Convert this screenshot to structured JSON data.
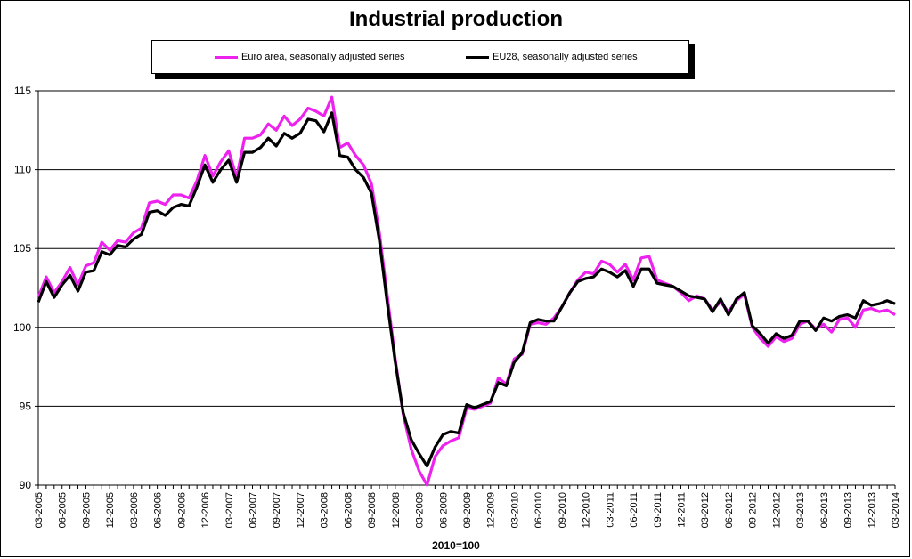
{
  "chart_data": {
    "type": "line",
    "title": "Industrial production",
    "xlabel": "2010=100",
    "ylabel": "",
    "ylim": [
      90,
      115
    ],
    "yticks": [
      90,
      95,
      100,
      105,
      110,
      115
    ],
    "grid": true,
    "legend_position": "top",
    "x": [
      "03-2005",
      "04-2005",
      "05-2005",
      "06-2005",
      "07-2005",
      "08-2005",
      "09-2005",
      "10-2005",
      "11-2005",
      "12-2005",
      "01-2006",
      "02-2006",
      "03-2006",
      "04-2006",
      "05-2006",
      "06-2006",
      "07-2006",
      "08-2006",
      "09-2006",
      "10-2006",
      "11-2006",
      "12-2006",
      "01-2007",
      "02-2007",
      "03-2007",
      "04-2007",
      "05-2007",
      "06-2007",
      "07-2007",
      "08-2007",
      "09-2007",
      "10-2007",
      "11-2007",
      "12-2007",
      "01-2008",
      "02-2008",
      "03-2008",
      "04-2008",
      "05-2008",
      "06-2008",
      "07-2008",
      "08-2008",
      "09-2008",
      "10-2008",
      "11-2008",
      "12-2008",
      "01-2009",
      "02-2009",
      "03-2009",
      "04-2009",
      "05-2009",
      "06-2009",
      "07-2009",
      "08-2009",
      "09-2009",
      "10-2009",
      "11-2009",
      "12-2009",
      "01-2010",
      "02-2010",
      "03-2010",
      "04-2010",
      "05-2010",
      "06-2010",
      "07-2010",
      "08-2010",
      "09-2010",
      "10-2010",
      "11-2010",
      "12-2010",
      "01-2011",
      "02-2011",
      "03-2011",
      "04-2011",
      "05-2011",
      "06-2011",
      "07-2011",
      "08-2011",
      "09-2011",
      "10-2011",
      "11-2011",
      "12-2011",
      "01-2012",
      "02-2012",
      "03-2012",
      "04-2012",
      "05-2012",
      "06-2012",
      "07-2012",
      "08-2012",
      "09-2012",
      "10-2012",
      "11-2012",
      "12-2012",
      "01-2013",
      "02-2013",
      "03-2013",
      "04-2013",
      "05-2013",
      "06-2013",
      "07-2013",
      "08-2013",
      "09-2013",
      "10-2013",
      "11-2013",
      "12-2013",
      "01-2014",
      "02-2014",
      "03-2014"
    ],
    "x_tick_labels": [
      "03-2005",
      "06-2005",
      "09-2005",
      "12-2005",
      "03-2006",
      "06-2006",
      "09-2006",
      "12-2006",
      "03-2007",
      "06-2007",
      "09-2007",
      "12-2007",
      "03-2008",
      "06-2008",
      "09-2008",
      "12-2008",
      "03-2009",
      "06-2009",
      "09-2009",
      "12-2009",
      "03-2010",
      "06-2010",
      "09-2010",
      "12-2010",
      "03-2011",
      "06-2011",
      "09-2011",
      "12-2011",
      "03-2012",
      "06-2012",
      "09-2012",
      "12-2012",
      "03-2013",
      "06-2013",
      "09-2013",
      "12-2013",
      "03-2014"
    ],
    "series": [
      {
        "name": "Euro area, seasonally adjusted series",
        "color": "#ee22ee",
        "values": [
          101.9,
          103.2,
          102.2,
          102.9,
          103.8,
          102.7,
          103.9,
          104.1,
          105.4,
          104.9,
          105.5,
          105.4,
          106.0,
          106.3,
          107.9,
          108.0,
          107.8,
          108.4,
          108.4,
          108.2,
          109.3,
          110.9,
          109.6,
          110.5,
          111.2,
          109.5,
          112.0,
          112.0,
          112.2,
          112.9,
          112.5,
          113.4,
          112.8,
          113.2,
          113.9,
          113.7,
          113.4,
          114.6,
          111.4,
          111.7,
          110.9,
          110.3,
          109.1,
          106.0,
          102.0,
          98.0,
          94.5,
          92.3,
          90.9,
          90.0,
          91.8,
          92.5,
          92.8,
          93.0,
          94.9,
          94.8,
          95.0,
          95.2,
          96.8,
          96.4,
          98.0,
          98.3,
          100.2,
          100.3,
          100.2,
          100.6,
          101.3,
          102.2,
          103.0,
          103.5,
          103.4,
          104.2,
          104.0,
          103.5,
          104.0,
          103.0,
          104.4,
          104.5,
          103.0,
          102.8,
          102.6,
          102.2,
          101.7,
          102.0,
          101.8,
          101.1,
          101.6,
          101.0,
          101.7,
          102.1,
          100.0,
          99.3,
          98.8,
          99.4,
          99.1,
          99.3,
          100.2,
          100.4,
          99.9,
          100.2,
          99.7,
          100.5,
          100.6,
          100.0,
          101.1,
          101.2,
          101.0,
          101.1,
          100.8
        ]
      },
      {
        "name": "EU28, seasonally adjusted series",
        "color": "#000000",
        "values": [
          101.6,
          102.9,
          101.9,
          102.7,
          103.3,
          102.3,
          103.5,
          103.6,
          104.8,
          104.6,
          105.2,
          105.1,
          105.6,
          105.9,
          107.3,
          107.4,
          107.1,
          107.6,
          107.8,
          107.7,
          108.9,
          110.3,
          109.2,
          110.0,
          110.6,
          109.2,
          111.1,
          111.1,
          111.4,
          112.0,
          111.5,
          112.3,
          112.0,
          112.3,
          113.2,
          113.1,
          112.4,
          113.6,
          110.9,
          110.8,
          110.0,
          109.5,
          108.5,
          105.5,
          101.5,
          97.8,
          94.6,
          92.9,
          92.0,
          91.2,
          92.4,
          93.2,
          93.4,
          93.3,
          95.1,
          94.9,
          95.1,
          95.3,
          96.5,
          96.3,
          97.8,
          98.4,
          100.3,
          100.5,
          100.4,
          100.4,
          101.3,
          102.2,
          102.9,
          103.1,
          103.2,
          103.7,
          103.5,
          103.2,
          103.6,
          102.6,
          103.7,
          103.7,
          102.8,
          102.7,
          102.6,
          102.3,
          102.0,
          101.9,
          101.8,
          101.0,
          101.8,
          100.8,
          101.8,
          102.2,
          100.1,
          99.6,
          99.0,
          99.6,
          99.3,
          99.5,
          100.4,
          100.4,
          99.8,
          100.6,
          100.4,
          100.7,
          100.8,
          100.6,
          101.7,
          101.4,
          101.5,
          101.7,
          101.5
        ]
      }
    ]
  }
}
